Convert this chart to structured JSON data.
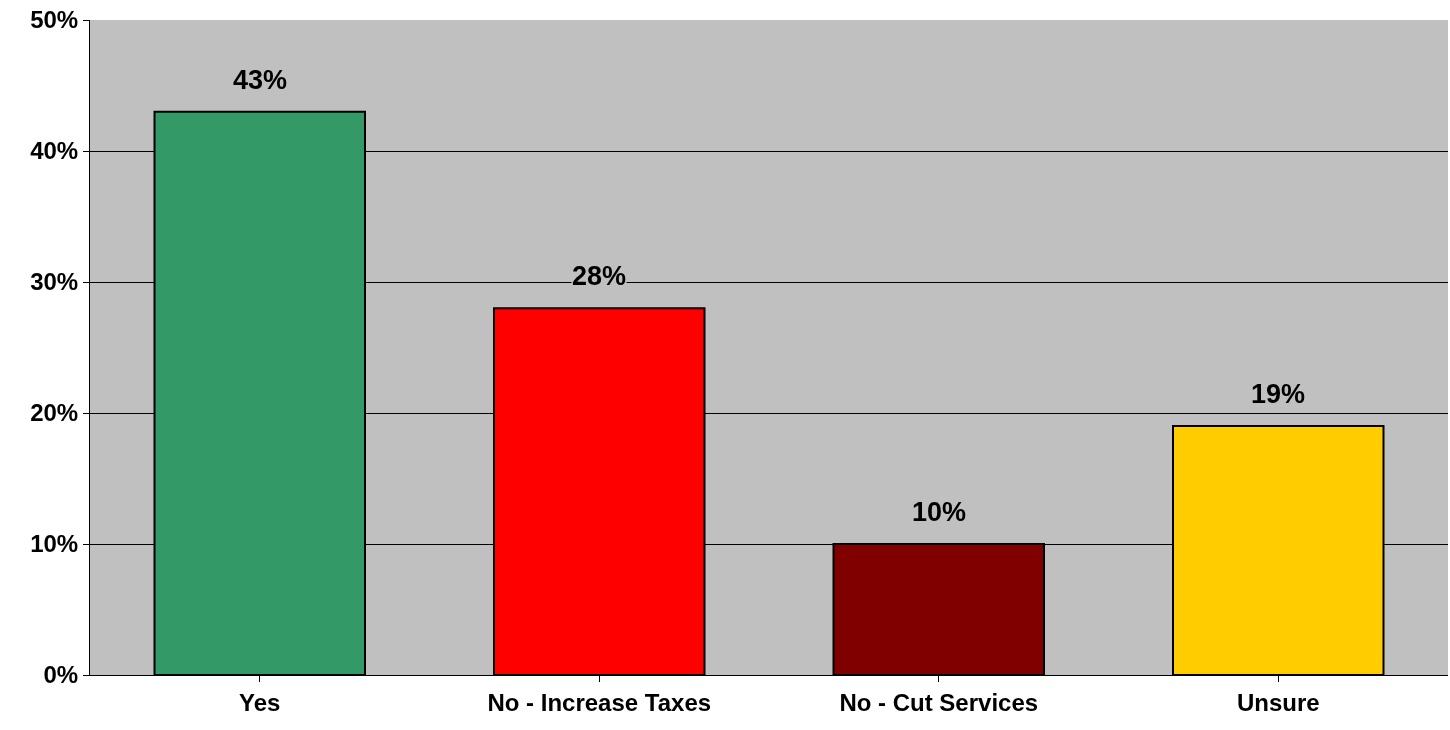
{
  "chart_data": {
    "type": "bar",
    "categories": [
      "Yes",
      "No - Increase Taxes",
      "No - Cut Services",
      "Unsure"
    ],
    "values": [
      43,
      28,
      10,
      19
    ],
    "colors": [
      "#339966",
      "#ff0000",
      "#800000",
      "#ffcc00"
    ],
    "value_labels": [
      "43%",
      "28%",
      "10%",
      "19%"
    ],
    "ylim": [
      0,
      50
    ],
    "yticks": [
      {
        "value": 0,
        "label": "0%"
      },
      {
        "value": 10,
        "label": "10%"
      },
      {
        "value": 20,
        "label": "20%"
      },
      {
        "value": 30,
        "label": "30%"
      },
      {
        "value": 40,
        "label": "40%"
      },
      {
        "value": 50,
        "label": "50%"
      }
    ],
    "grid": "y",
    "legend": false
  }
}
